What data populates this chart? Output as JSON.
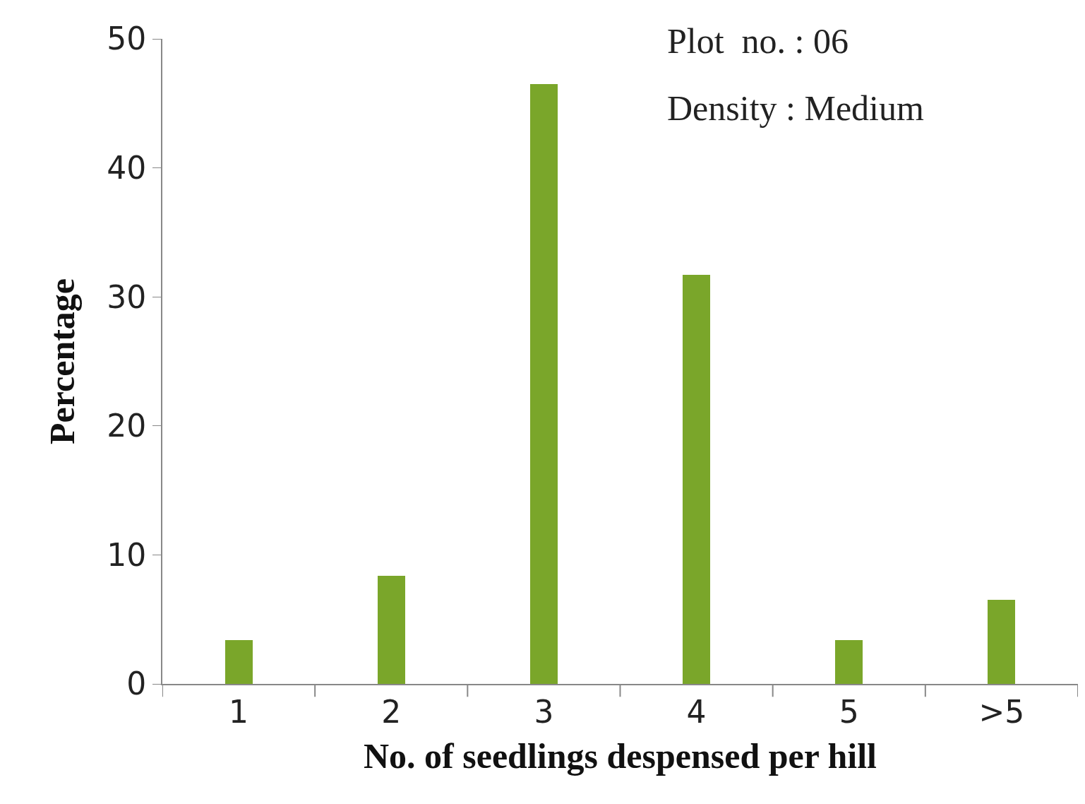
{
  "chart_data": {
    "type": "bar",
    "xlabel": "No. of seedlings despensed per hill",
    "ylabel": "Percentage",
    "categories": [
      "1",
      "2",
      "3",
      "4",
      "5",
      ">5"
    ],
    "values": [
      3.4,
      8.4,
      46.5,
      31.7,
      3.4,
      6.5
    ],
    "color": "#7aa62a",
    "ylim": [
      0,
      50
    ],
    "yticks": [
      0,
      10,
      20,
      30,
      40,
      50
    ],
    "annotations": [
      "Plot  no. : 06",
      "Density : Medium"
    ]
  }
}
